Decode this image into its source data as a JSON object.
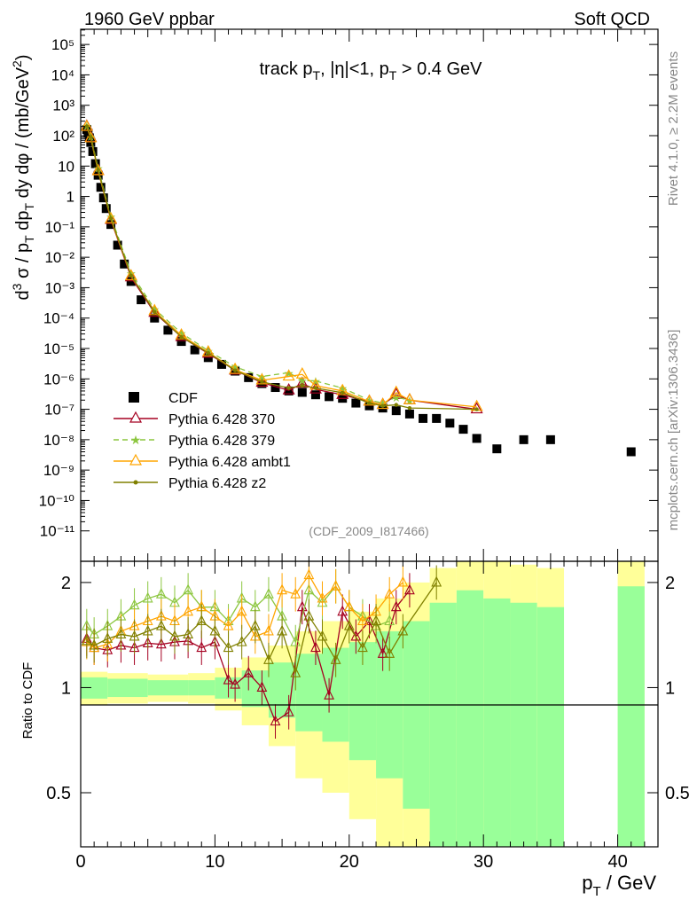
{
  "header": {
    "left_label": "1960 GeV ppbar",
    "right_label": "Soft QCD"
  },
  "side_labels": {
    "rivet": "Rivet 4.1.0, ≥ 2.2M events",
    "mcplots": "mcplots.cern.ch [arXiv:1306.3436]"
  },
  "chart_data": [
    {
      "panel": "main",
      "type": "scatter",
      "title": "track pT, |η|<1, pT > 0.4 GeV",
      "watermark": "(CDF_2009_I817466)",
      "ylabel": "d³σ / pT dpT dy dφ / (mb/GeV²)",
      "xlabel": "pT / GeV",
      "xlim": [
        0,
        43
      ],
      "ylim_log10": [
        -12,
        5.5
      ],
      "ytick_exponents": [
        -11,
        -10,
        -9,
        -8,
        -7,
        -6,
        -5,
        -4,
        -3,
        -2,
        -1,
        0,
        1,
        2,
        3,
        4,
        5
      ],
      "ytick_labels": [
        "10⁻¹¹",
        "10⁻¹⁰",
        "10⁻⁹",
        "10⁻⁸",
        "10⁻⁷",
        "10⁻⁶",
        "10⁻⁵",
        "10⁻⁴",
        "10⁻³",
        "10⁻²",
        "10⁻¹",
        "1",
        "10",
        "10²",
        "10³",
        "10⁴",
        "10⁵"
      ],
      "legend": [
        "CDF",
        "Pythia 6.428 370",
        "Pythia 6.428 379",
        "Pythia 6.428 ambt1",
        "Pythia 6.428 z2"
      ],
      "series": [
        {
          "name": "CDF",
          "color": "#000000",
          "marker": "square",
          "x": [
            0.45,
            0.55,
            0.65,
            0.75,
            0.9,
            1.1,
            1.3,
            1.5,
            1.7,
            1.9,
            2.25,
            2.75,
            3.25,
            3.75,
            4.5,
            5.5,
            6.5,
            7.5,
            8.5,
            9.5,
            10.5,
            11.5,
            12.5,
            13.5,
            14.5,
            15.5,
            16.5,
            17.5,
            18.5,
            19.5,
            20.5,
            21.5,
            22.5,
            23.5,
            24.5,
            25.5,
            26.5,
            27.5,
            28.5,
            29.5,
            31.0,
            33.0,
            35.0,
            41.0
          ],
          "y": [
            160,
            120,
            85,
            60,
            30,
            12,
            5,
            2,
            0.9,
            0.4,
            0.12,
            0.025,
            0.006,
            0.0016,
            0.0004,
            0.0001,
            4e-05,
            1.7e-05,
            9e-06,
            5e-06,
            3e-06,
            1.8e-06,
            1.1e-06,
            7e-07,
            5.2e-07,
            4e-07,
            3.6e-07,
            3e-07,
            2.6e-07,
            2.3e-07,
            1.6e-07,
            1.3e-07,
            1.1e-07,
            9e-08,
            7e-08,
            5e-08,
            5e-08,
            3.5e-08,
            2.2e-08,
            1.1e-08,
            5e-09,
            1e-08,
            1e-08,
            4e-09
          ]
        },
        {
          "name": "Pythia 6.428 370",
          "color": "#a50021",
          "marker": "triangle-open",
          "line": "solid",
          "x": [
            0.45,
            0.75,
            1.3,
            2.25,
            3.75,
            5.5,
            7.5,
            9.5,
            11.5,
            13.5,
            15.5,
            16.5,
            17.5,
            19.5,
            21.5,
            22.5,
            23.5,
            24.5,
            29.5
          ],
          "y": [
            200,
            85,
            7,
            0.17,
            0.0022,
            0.00015,
            2.4e-05,
            6.8e-06,
            1.9e-06,
            7.5e-07,
            4.2e-07,
            7e-07,
            4.5e-07,
            3e-07,
            1.8e-07,
            1.4e-07,
            3e-07,
            2e-07,
            1e-07
          ]
        },
        {
          "name": "Pythia 6.428 379",
          "color": "#8cc63f",
          "marker": "star",
          "line": "dashed",
          "x": [
            0.45,
            0.75,
            1.3,
            2.25,
            3.75,
            5.5,
            7.5,
            9.5,
            11.5,
            13.5,
            15.5,
            16.5,
            17.5,
            19.5,
            21.5,
            22.5,
            23.5,
            24.5
          ],
          "y": [
            210,
            95,
            8.5,
            0.22,
            0.003,
            0.0002,
            3.2e-05,
            8.5e-06,
            2.5e-06,
            1.2e-06,
            1.6e-06,
            9e-07,
            8.5e-07,
            5e-07,
            2e-07,
            1.6e-07,
            2.5e-07,
            2e-07
          ]
        },
        {
          "name": "Pythia 6.428 ambt1",
          "color": "#ffa500",
          "marker": "triangle-open",
          "line": "solid",
          "x": [
            0.45,
            0.75,
            1.3,
            2.25,
            3.75,
            5.5,
            7.5,
            9.5,
            11.5,
            13.5,
            15.5,
            16.5,
            17.5,
            19.5,
            21.5,
            22.5,
            23.5,
            24.5,
            29.5
          ],
          "y": [
            195,
            82,
            6.8,
            0.18,
            0.0024,
            0.00017,
            2.7e-05,
            7.5e-06,
            2e-06,
            9e-07,
            1.2e-06,
            1.4e-06,
            6e-07,
            4e-07,
            1.8e-07,
            1.4e-07,
            3.5e-07,
            2e-07,
            1.2e-07
          ]
        },
        {
          "name": "Pythia 6.428 z2",
          "color": "#808000",
          "marker": "dot",
          "line": "solid",
          "x": [
            0.45,
            0.75,
            1.3,
            2.25,
            3.75,
            5.5,
            7.5,
            9.5,
            11.5,
            13.5,
            15.5,
            16.5,
            17.5,
            19.5,
            21.5,
            22.5,
            23.5,
            24.5,
            29.5
          ],
          "y": [
            205,
            90,
            7.5,
            0.19,
            0.0025,
            0.00016,
            2.4e-05,
            7.2e-06,
            1.9e-06,
            8e-07,
            5e-07,
            6e-07,
            5e-07,
            3.5e-07,
            1.6e-07,
            1.3e-07,
            1.4e-07,
            1.1e-07,
            1e-07
          ]
        }
      ]
    },
    {
      "panel": "ratio",
      "type": "line",
      "ylabel": "Ratio to CDF",
      "xlabel": "pT / GeV",
      "xlim": [
        0,
        43
      ],
      "ylim": [
        0.35,
        2.3
      ],
      "log_scale_y": true,
      "yticks": [
        0.5,
        1,
        2
      ],
      "ytick_labels": [
        "0.5",
        "1",
        "2"
      ],
      "xticks": [
        0,
        10,
        20,
        30,
        40
      ],
      "xtick_labels": [
        "0",
        "10",
        "20",
        "30",
        "40"
      ],
      "uncertainty_bands": {
        "bins": [
          [
            0,
            2
          ],
          [
            2,
            5
          ],
          [
            5,
            8
          ],
          [
            8,
            10
          ],
          [
            10,
            12
          ],
          [
            12,
            14
          ],
          [
            14,
            16
          ],
          [
            16,
            18
          ],
          [
            18,
            20
          ],
          [
            20,
            22
          ],
          [
            22,
            24
          ],
          [
            24,
            26
          ],
          [
            26,
            28
          ],
          [
            28,
            30
          ],
          [
            30,
            32
          ],
          [
            32,
            34
          ],
          [
            34,
            36
          ],
          [
            40,
            42
          ]
        ],
        "inner_low": [
          0.93,
          0.94,
          0.95,
          0.95,
          0.93,
          0.88,
          0.82,
          0.75,
          0.7,
          0.62,
          0.55,
          0.45,
          0.35,
          0.35,
          0.35,
          0.35,
          0.35,
          0.35
        ],
        "inner_high": [
          1.07,
          1.06,
          1.05,
          1.05,
          1.07,
          1.12,
          1.18,
          1.25,
          1.3,
          1.35,
          1.45,
          1.55,
          1.75,
          1.9,
          1.8,
          1.75,
          1.7,
          1.95
        ],
        "outer_low": [
          0.89,
          0.9,
          0.91,
          0.9,
          0.86,
          0.78,
          0.68,
          0.55,
          0.5,
          0.42,
          0.35,
          0.35,
          0.35,
          0.35,
          0.35,
          0.35,
          0.35,
          0.35
        ],
        "outer_high": [
          1.11,
          1.1,
          1.09,
          1.1,
          1.14,
          1.22,
          1.32,
          1.45,
          1.55,
          1.65,
          1.8,
          2.0,
          2.2,
          2.3,
          2.3,
          2.25,
          2.2,
          2.3
        ],
        "inner_color": "#99ff99",
        "outer_color": "#ffff99"
      },
      "series": [
        {
          "name": "Pythia 6.428 370",
          "color": "#a50021",
          "x": [
            0.45,
            1.0,
            2.0,
            3.0,
            4.0,
            5.0,
            6.0,
            7.0,
            8.0,
            9.0,
            10.0,
            11.0,
            11.5,
            12.5,
            13.5,
            14.5,
            15.5,
            16.5,
            17.5,
            18.5,
            19.5,
            20.5,
            21.5,
            22.5,
            23.5,
            24.5
          ],
          "y": [
            1.38,
            1.3,
            1.28,
            1.32,
            1.3,
            1.34,
            1.33,
            1.35,
            1.36,
            1.3,
            1.35,
            1.05,
            1.02,
            1.1,
            1.0,
            0.8,
            0.85,
            1.7,
            1.3,
            0.95,
            1.65,
            1.4,
            1.55,
            1.25,
            1.7,
            1.9
          ]
        },
        {
          "name": "Pythia 6.428 379",
          "color": "#8cc63f",
          "x": [
            0.45,
            1.0,
            2.0,
            3.0,
            4.0,
            5.0,
            6.0,
            7.0,
            8.0,
            9.0,
            10.0,
            11.0,
            12.0,
            13.0,
            14.0,
            15.0,
            16.0,
            17.0,
            18.0,
            19.0,
            20.0,
            21.0,
            22.0,
            23.0
          ],
          "y": [
            1.5,
            1.42,
            1.5,
            1.6,
            1.72,
            1.8,
            1.85,
            1.75,
            1.9,
            1.7,
            1.7,
            1.55,
            1.8,
            1.7,
            1.85,
            1.6,
            1.35,
            1.9,
            1.75,
            1.95,
            1.7,
            1.6,
            1.5,
            1.55
          ]
        },
        {
          "name": "Pythia 6.428 ambt1",
          "color": "#ffa500",
          "x": [
            0.45,
            1.0,
            2.0,
            3.0,
            4.0,
            5.0,
            6.0,
            7.0,
            8.0,
            9.0,
            10.0,
            11.0,
            12.0,
            13.0,
            14.0,
            15.0,
            16.0,
            17.0,
            18.0,
            19.0,
            20.0,
            21.0,
            22.0,
            23.0,
            24.0
          ],
          "y": [
            1.35,
            1.3,
            1.33,
            1.45,
            1.5,
            1.55,
            1.6,
            1.55,
            1.65,
            1.7,
            1.6,
            1.5,
            1.65,
            1.4,
            1.45,
            1.9,
            1.85,
            2.1,
            1.8,
            1.95,
            1.7,
            1.55,
            1.65,
            1.85,
            2.0
          ]
        },
        {
          "name": "Pythia 6.428 z2",
          "color": "#808000",
          "x": [
            0.45,
            1.0,
            2.0,
            3.0,
            4.0,
            5.0,
            6.0,
            7.0,
            8.0,
            9.0,
            10.0,
            11.0,
            12.0,
            13.0,
            14.0,
            15.0,
            16.0,
            17.0,
            18.0,
            19.0,
            20.0,
            21.0,
            22.0,
            23.0,
            24.0,
            26.5
          ],
          "y": [
            1.36,
            1.32,
            1.38,
            1.42,
            1.4,
            1.45,
            1.5,
            1.4,
            1.42,
            1.55,
            1.45,
            1.3,
            1.35,
            1.5,
            1.2,
            1.45,
            1.1,
            1.6,
            1.4,
            1.2,
            1.5,
            1.3,
            1.55,
            1.25,
            1.45,
            2.0
          ]
        }
      ]
    }
  ]
}
